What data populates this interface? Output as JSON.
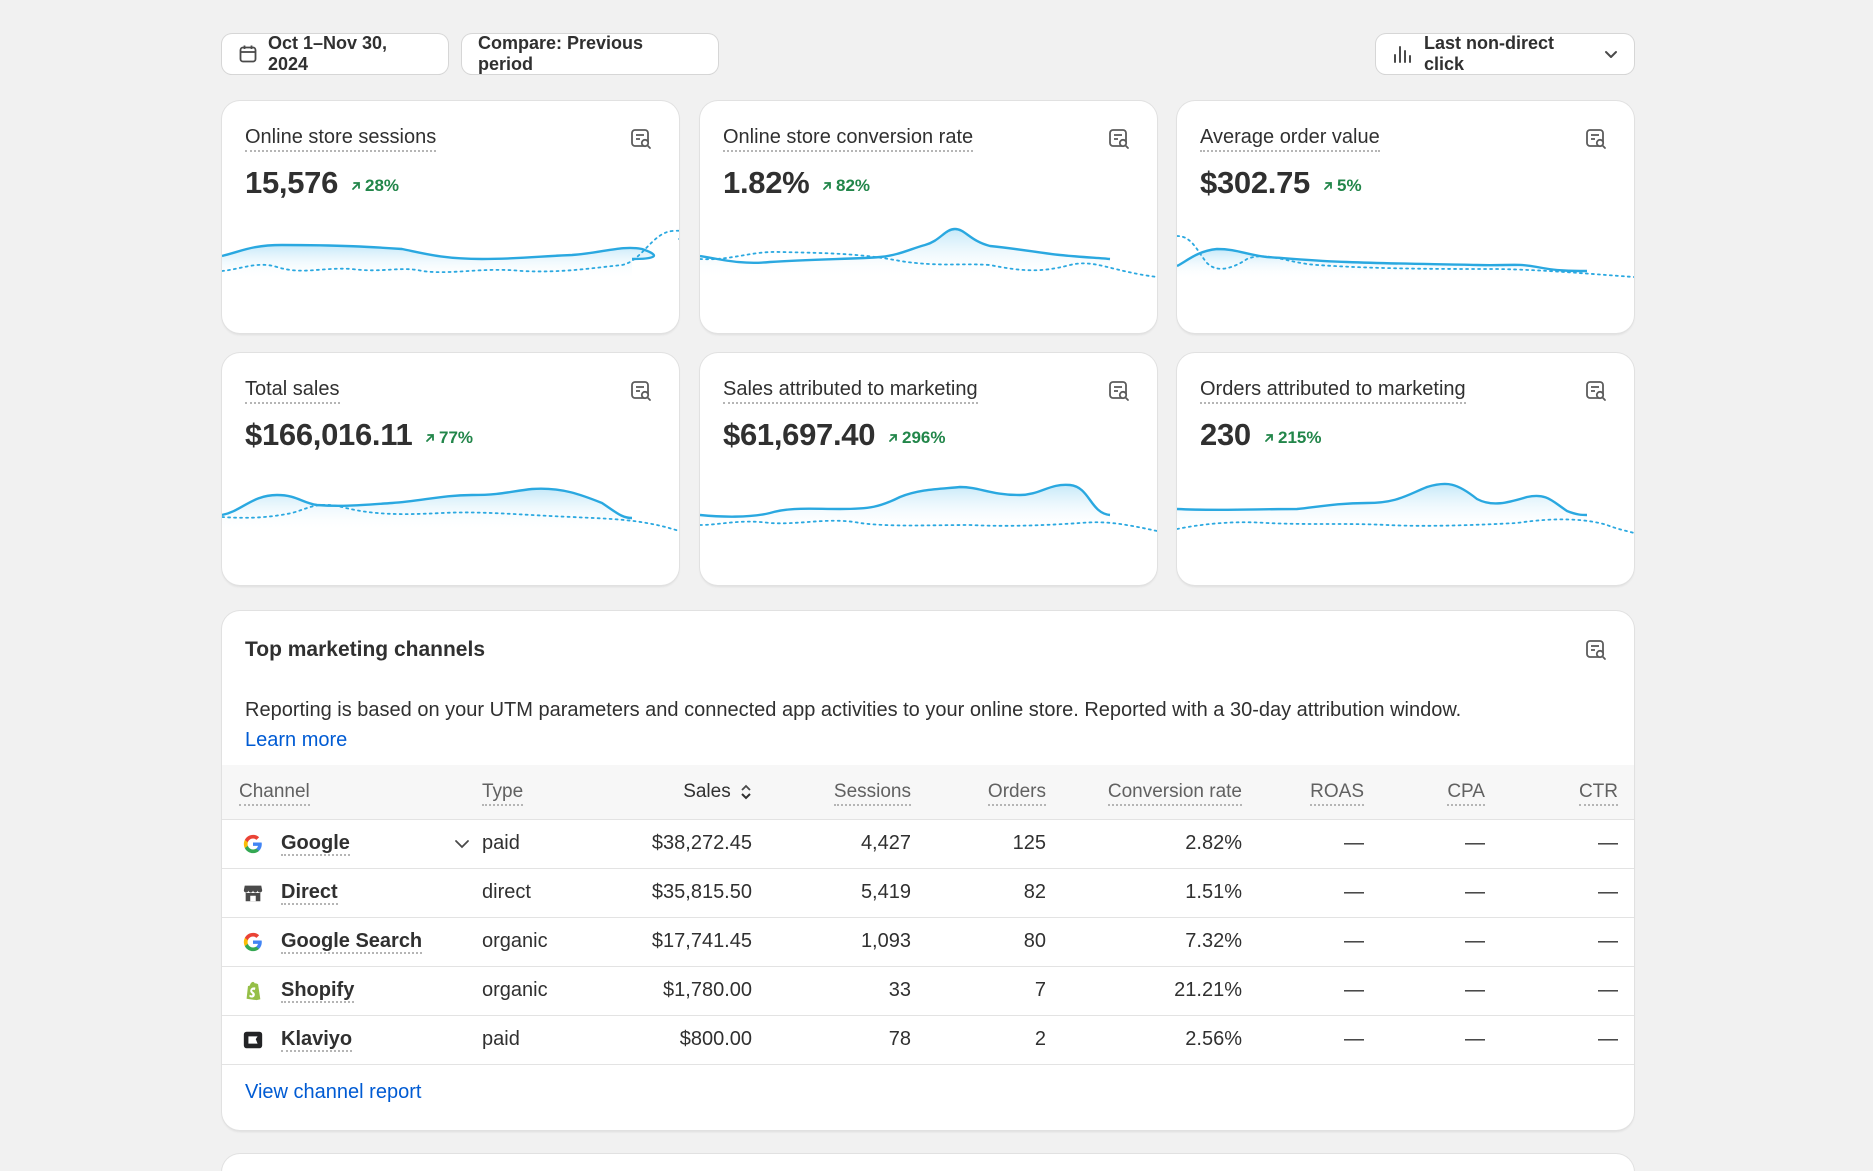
{
  "toolbar": {
    "date_range": "Oct 1–Nov 30, 2024",
    "compare": "Compare: Previous period",
    "attribution": "Last non-direct click"
  },
  "metrics": [
    {
      "title": "Online store sessions",
      "value": "15,576",
      "delta": "28%"
    },
    {
      "title": "Online store conversion rate",
      "value": "1.82%",
      "delta": "82%"
    },
    {
      "title": "Average order value",
      "value": "$302.75",
      "delta": "5%"
    },
    {
      "title": "Total sales",
      "value": "$166,016.11",
      "delta": "77%"
    },
    {
      "title": "Sales attributed to marketing",
      "value": "$61,697.40",
      "delta": "296%"
    },
    {
      "title": "Orders attributed to marketing",
      "value": "230",
      "delta": "215%"
    }
  ],
  "channels": {
    "title": "Top marketing channels",
    "description": "Reporting is based on your UTM parameters and connected app activities to your online store. Reported with a 30-day attribution window.",
    "learn_more": "Learn more",
    "headers": [
      "Channel",
      "Type",
      "Sales",
      "Sessions",
      "Orders",
      "Conversion rate",
      "ROAS",
      "CPA",
      "CTR"
    ],
    "rows": [
      {
        "icon": "google-icon",
        "channel": "Google",
        "type": "paid",
        "sales": "$38,272.45",
        "sessions": "4,427",
        "orders": "125",
        "conversion": "2.82%",
        "roas": "—",
        "cpa": "—",
        "ctr": "—"
      },
      {
        "icon": "store-icon",
        "channel": "Direct",
        "type": "direct",
        "sales": "$35,815.50",
        "sessions": "5,419",
        "orders": "82",
        "conversion": "1.51%",
        "roas": "—",
        "cpa": "—",
        "ctr": "—"
      },
      {
        "icon": "google-icon",
        "channel": "Google Search",
        "type": "organic",
        "sales": "$17,741.45",
        "sessions": "1,093",
        "orders": "80",
        "conversion": "7.32%",
        "roas": "—",
        "cpa": "—",
        "ctr": "—"
      },
      {
        "icon": "shopify-icon",
        "channel": "Shopify",
        "type": "organic",
        "sales": "$1,780.00",
        "sessions": "33",
        "orders": "7",
        "conversion": "21.21%",
        "roas": "—",
        "cpa": "—",
        "ctr": "—"
      },
      {
        "icon": "klaviyo-icon",
        "channel": "Klaviyo",
        "type": "paid",
        "sales": "$800.00",
        "sessions": "78",
        "orders": "2",
        "conversion": "2.56%",
        "roas": "—",
        "cpa": "—",
        "ctr": "—"
      }
    ],
    "view_report": "View channel report"
  },
  "colors": {
    "accent_line": "#2aa8e0",
    "positive": "#22864a",
    "link": "#005bd3"
  }
}
